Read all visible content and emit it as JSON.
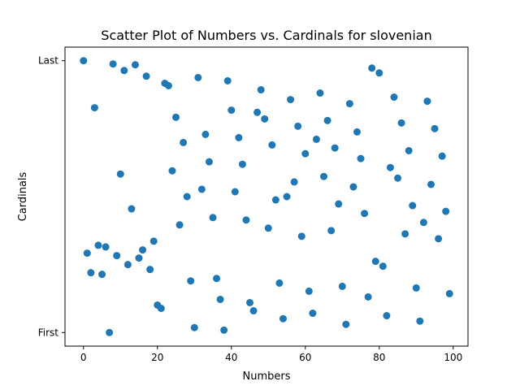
{
  "chart_data": {
    "type": "scatter",
    "title": "Scatter Plot of Numbers vs. Cardinals for slovenian",
    "xlabel": "Numbers",
    "ylabel": "Cardinals",
    "xlim": [
      -5,
      104
    ],
    "ylim": [
      -0.05,
      1.05
    ],
    "xticks": [
      0,
      20,
      40,
      60,
      80,
      100
    ],
    "yticks": [
      {
        "value": 0,
        "label": "First"
      },
      {
        "value": 1,
        "label": "Last"
      }
    ],
    "grid": false,
    "series": [
      {
        "color": "#1f77b4",
        "points": [
          [
            0,
            1.0
          ],
          [
            1,
            0.292
          ],
          [
            2,
            0.22
          ],
          [
            3,
            0.827
          ],
          [
            4,
            0.321
          ],
          [
            5,
            0.214
          ],
          [
            6,
            0.315
          ],
          [
            7,
            0.0
          ],
          [
            8,
            0.988
          ],
          [
            9,
            0.283
          ],
          [
            10,
            0.583
          ],
          [
            11,
            0.964
          ],
          [
            12,
            0.25
          ],
          [
            13,
            0.455
          ],
          [
            14,
            0.985
          ],
          [
            15,
            0.274
          ],
          [
            16,
            0.304
          ],
          [
            17,
            0.943
          ],
          [
            18,
            0.232
          ],
          [
            19,
            0.336
          ],
          [
            20,
            0.101
          ],
          [
            21,
            0.089
          ],
          [
            22,
            0.917
          ],
          [
            23,
            0.908
          ],
          [
            24,
            0.595
          ],
          [
            25,
            0.792
          ],
          [
            26,
            0.396
          ],
          [
            27,
            0.699
          ],
          [
            28,
            0.5
          ],
          [
            29,
            0.19
          ],
          [
            30,
            0.018
          ],
          [
            31,
            0.938
          ],
          [
            32,
            0.527
          ],
          [
            33,
            0.729
          ],
          [
            34,
            0.628
          ],
          [
            35,
            0.423
          ],
          [
            36,
            0.199
          ],
          [
            37,
            0.122
          ],
          [
            38,
            0.009
          ],
          [
            39,
            0.926
          ],
          [
            40,
            0.818
          ],
          [
            41,
            0.518
          ],
          [
            42,
            0.717
          ],
          [
            43,
            0.619
          ],
          [
            44,
            0.414
          ],
          [
            45,
            0.11
          ],
          [
            46,
            0.08
          ],
          [
            47,
            0.81
          ],
          [
            48,
            0.893
          ],
          [
            49,
            0.786
          ],
          [
            50,
            0.384
          ],
          [
            51,
            0.69
          ],
          [
            52,
            0.488
          ],
          [
            53,
            0.182
          ],
          [
            54,
            0.051
          ],
          [
            55,
            0.5
          ],
          [
            56,
            0.857
          ],
          [
            57,
            0.554
          ],
          [
            58,
            0.759
          ],
          [
            59,
            0.354
          ],
          [
            60,
            0.658
          ],
          [
            61,
            0.152
          ],
          [
            62,
            0.071
          ],
          [
            63,
            0.711
          ],
          [
            64,
            0.881
          ],
          [
            65,
            0.574
          ],
          [
            66,
            0.78
          ],
          [
            67,
            0.375
          ],
          [
            68,
            0.679
          ],
          [
            69,
            0.473
          ],
          [
            70,
            0.17
          ],
          [
            71,
            0.03
          ],
          [
            72,
            0.842
          ],
          [
            73,
            0.536
          ],
          [
            74,
            0.738
          ],
          [
            75,
            0.64
          ],
          [
            76,
            0.438
          ],
          [
            77,
            0.131
          ],
          [
            78,
            0.973
          ],
          [
            79,
            0.262
          ],
          [
            80,
            0.955
          ],
          [
            81,
            0.244
          ],
          [
            82,
            0.062
          ],
          [
            83,
            0.607
          ],
          [
            84,
            0.866
          ],
          [
            85,
            0.568
          ],
          [
            86,
            0.771
          ],
          [
            87,
            0.363
          ],
          [
            88,
            0.669
          ],
          [
            89,
            0.467
          ],
          [
            90,
            0.164
          ],
          [
            91,
            0.042
          ],
          [
            92,
            0.405
          ],
          [
            93,
            0.851
          ],
          [
            94,
            0.545
          ],
          [
            95,
            0.75
          ],
          [
            96,
            0.345
          ],
          [
            97,
            0.649
          ],
          [
            98,
            0.446
          ],
          [
            99,
            0.143
          ]
        ]
      }
    ]
  }
}
